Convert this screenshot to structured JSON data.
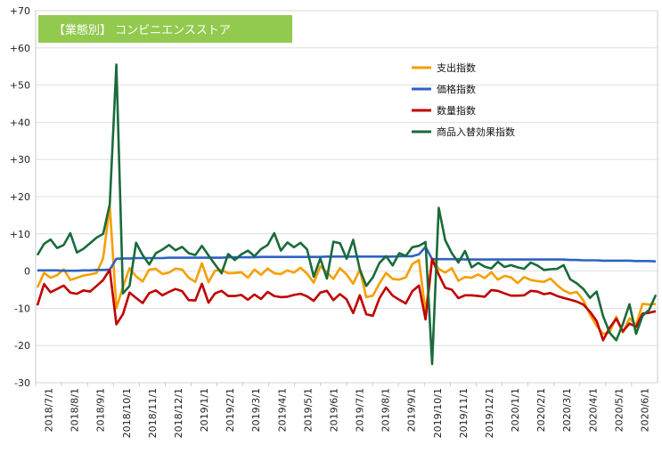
{
  "chart_data": {
    "type": "line",
    "title": "【業態別】 コンビニエンスストア",
    "xlabel": "",
    "ylabel": "",
    "ylim": [
      -30,
      70
    ],
    "y_ticks": [
      "+70",
      "+60",
      "+50",
      "+40",
      "+30",
      "+20",
      "+10",
      "0",
      "-10",
      "-20",
      "-30"
    ],
    "y_tick_values": [
      70,
      60,
      50,
      40,
      30,
      20,
      10,
      0,
      -10,
      -20,
      -30
    ],
    "x_tick_labels": [
      "2018/7/1",
      "2018/8/1",
      "2018/9/1",
      "2018/10/1",
      "2018/11/1",
      "2018/12/1",
      "2019/1/1",
      "2019/2/1",
      "2019/3/1",
      "2019/4/1",
      "2019/5/1",
      "2019/6/1",
      "2019/7/1",
      "2019/8/1",
      "2019/9/1",
      "2019/10/1",
      "2019/11/1",
      "2019/12/1",
      "2020/1/1",
      "2020/2/1",
      "2020/3/1",
      "2020/4/1",
      "2020/5/1",
      "2020/6/1"
    ],
    "grid": "horizontal",
    "legend_position": "top-right",
    "title_box_color": "#92c94f",
    "series": [
      {
        "name": "支出指数",
        "color": "#f59f00",
        "values": [
          -4.4,
          -0.5,
          -1.8,
          -1.1,
          0.5,
          -2.4,
          -1.8,
          -1.2,
          -0.9,
          -0.5,
          3.5,
          17.6,
          -10.0,
          -4.3,
          0.8,
          -1.4,
          -2.8,
          0.4,
          0.6,
          -0.8,
          -0.4,
          0.7,
          0.4,
          -1.8,
          -2.9,
          2.1,
          -3.0,
          0.1,
          0.3,
          -0.6,
          -0.5,
          -0.3,
          -1.8,
          0.4,
          -1.0,
          0.7,
          -0.6,
          -0.8,
          0.2,
          -0.4,
          0.9,
          -0.7,
          -3.1,
          1.3,
          -0.3,
          -2.1,
          0.8,
          -0.9,
          -3.4,
          0.4,
          -7.0,
          -6.6,
          -3.3,
          -0.5,
          -2.1,
          -2.3,
          -1.7,
          1.9,
          3.0,
          -11.0,
          3.4,
          0.6,
          -0.4,
          0.8,
          -2.6,
          -1.6,
          -1.8,
          -0.9,
          -1.9,
          -0.3,
          -2.3,
          -1.3,
          -1.7,
          -3.2,
          -1.6,
          -2.4,
          -2.7,
          -2.9,
          -2.0,
          -3.8,
          -5.2,
          -6.0,
          -5.6,
          -7.9,
          -11.7,
          -14.7,
          -16.9,
          -16.4,
          -12.3,
          -16.5,
          -12.7,
          -14.5,
          -8.8,
          -9.0,
          -8.8
        ]
      },
      {
        "name": "価格指数",
        "color": "#2e62c2",
        "values": [
          0.2,
          0.2,
          0.2,
          0.2,
          0.1,
          0.1,
          0.1,
          0.2,
          0.2,
          0.3,
          0.3,
          0.4,
          3.3,
          3.4,
          3.4,
          3.5,
          3.5,
          3.5,
          3.5,
          3.5,
          3.6,
          3.6,
          3.6,
          3.6,
          3.6,
          3.6,
          3.6,
          3.6,
          3.6,
          3.7,
          3.7,
          3.7,
          3.7,
          3.7,
          3.8,
          3.8,
          3.8,
          3.8,
          3.8,
          3.8,
          3.8,
          3.8,
          3.8,
          3.8,
          3.9,
          3.9,
          3.9,
          3.9,
          3.9,
          3.9,
          3.9,
          3.9,
          3.9,
          3.9,
          3.9,
          4.0,
          4.0,
          4.0,
          4.5,
          6.5,
          3.2,
          3.2,
          3.2,
          3.2,
          3.2,
          3.1,
          3.1,
          3.1,
          3.1,
          3.1,
          3.1,
          3.1,
          3.1,
          3.1,
          3.1,
          3.1,
          3.1,
          3.1,
          3.1,
          3.1,
          3.1,
          3.0,
          3.0,
          2.9,
          2.9,
          2.9,
          2.8,
          2.8,
          2.8,
          2.8,
          2.8,
          2.7,
          2.7,
          2.7,
          2.6
        ]
      },
      {
        "name": "数量指数",
        "color": "#c00000",
        "values": [
          -9.2,
          -3.5,
          -5.7,
          -4.8,
          -3.9,
          -5.8,
          -6.1,
          -5.2,
          -5.5,
          -4.0,
          -2.4,
          0.4,
          -14.3,
          -11.6,
          -5.8,
          -7.2,
          -8.6,
          -5.9,
          -5.2,
          -6.5,
          -5.6,
          -4.8,
          -5.4,
          -7.8,
          -7.9,
          -3.4,
          -8.5,
          -6.0,
          -5.3,
          -6.7,
          -6.7,
          -6.4,
          -7.7,
          -6.3,
          -7.5,
          -5.6,
          -6.7,
          -7.0,
          -6.9,
          -6.4,
          -6.1,
          -6.8,
          -8.0,
          -5.8,
          -5.3,
          -7.8,
          -6.2,
          -7.6,
          -11.3,
          -6.5,
          -11.6,
          -12.0,
          -7.3,
          -4.4,
          -6.6,
          -7.7,
          -8.7,
          -5.4,
          -3.9,
          -13.0,
          3.2,
          -0.9,
          -4.5,
          -5.0,
          -7.3,
          -6.5,
          -6.5,
          -6.7,
          -6.9,
          -5.1,
          -5.3,
          -6.0,
          -6.6,
          -6.6,
          -6.5,
          -5.3,
          -5.5,
          -6.2,
          -5.9,
          -6.7,
          -7.2,
          -7.7,
          -8.2,
          -9.0,
          -10.9,
          -13.4,
          -18.6,
          -15.2,
          -12.8,
          -16.2,
          -14.1,
          -15.0,
          -11.4,
          -11.2,
          -10.8
        ]
      },
      {
        "name": "商品入替効果指数",
        "color": "#1a6b3a",
        "values": [
          4.3,
          7.3,
          8.5,
          6.2,
          7.0,
          10.2,
          5.0,
          6.0,
          7.5,
          9.0,
          10.0,
          18.0,
          55.5,
          -6.0,
          -4.0,
          7.6,
          4.3,
          1.8,
          4.8,
          5.8,
          7.0,
          5.6,
          6.5,
          4.8,
          4.3,
          6.8,
          4.2,
          1.8,
          -0.6,
          4.6,
          3.0,
          4.5,
          5.5,
          4.0,
          5.9,
          7.0,
          10.2,
          5.5,
          7.7,
          6.4,
          7.6,
          5.8,
          -1.5,
          3.4,
          -2.0,
          7.9,
          7.5,
          3.3,
          8.4,
          0.5,
          -4.0,
          -1.7,
          2.2,
          4.0,
          1.5,
          4.8,
          4.1,
          6.4,
          6.8,
          7.8,
          -25.0,
          17.0,
          8.3,
          4.8,
          2.3,
          5.4,
          1.0,
          2.2,
          1.2,
          0.7,
          2.5,
          1.1,
          1.6,
          1.0,
          0.6,
          2.3,
          1.5,
          0.3,
          0.5,
          0.6,
          1.6,
          -2.2,
          -3.3,
          -4.8,
          -7.2,
          -5.5,
          -12.1,
          -16.6,
          -18.6,
          -14.2,
          -8.9,
          -16.9,
          -12.0,
          -10.4,
          -6.4
        ]
      }
    ]
  }
}
